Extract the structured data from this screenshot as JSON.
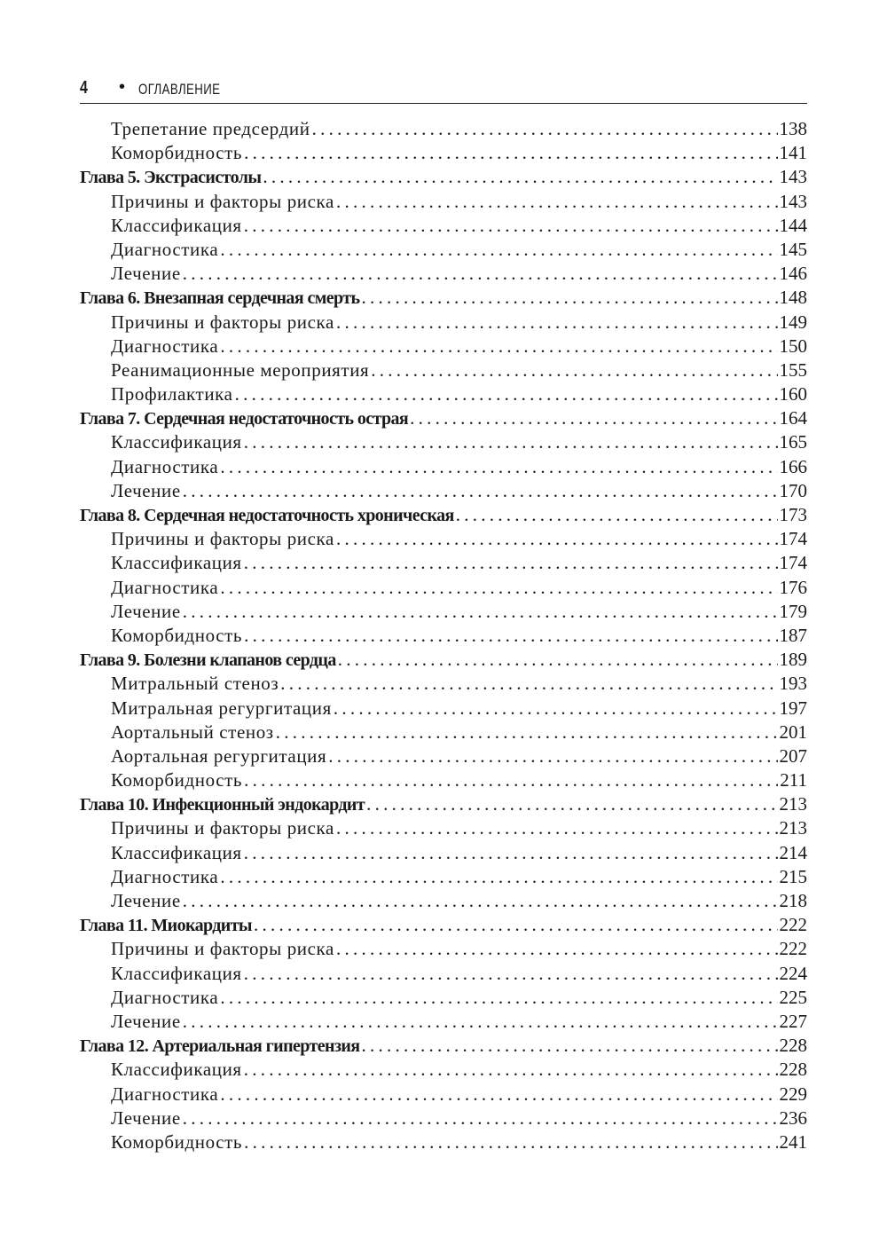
{
  "header": {
    "page_number": "4",
    "bullet": "•",
    "title": "ОГЛАВЛЕНИЕ"
  },
  "entries": [
    {
      "level": "sub",
      "text": "Трепетание предсердий",
      "page": "138"
    },
    {
      "level": "sub",
      "text": "Коморбидность",
      "page": "141"
    },
    {
      "level": "chapter",
      "text": "Глава 5. Экстрасистолы",
      "page": "143"
    },
    {
      "level": "sub",
      "text": "Причины и факторы риска",
      "page": "143"
    },
    {
      "level": "sub",
      "text": "Классификация",
      "page": "144"
    },
    {
      "level": "sub",
      "text": "Диагностика",
      "page": "145"
    },
    {
      "level": "sub",
      "text": "Лечение",
      "page": "146"
    },
    {
      "level": "chapter",
      "text": "Глава 6. Внезапная сердечная смерть",
      "page": "148"
    },
    {
      "level": "sub",
      "text": "Причины и факторы риска",
      "page": "149"
    },
    {
      "level": "sub",
      "text": "Диагностика",
      "page": "150"
    },
    {
      "level": "sub",
      "text": "Реанимационные мероприятия",
      "page": "155"
    },
    {
      "level": "sub",
      "text": "Профилактика",
      "page": "160"
    },
    {
      "level": "chapter",
      "text": "Глава 7. Сердечная недостаточность острая",
      "page": "164"
    },
    {
      "level": "sub",
      "text": "Классификация",
      "page": "165"
    },
    {
      "level": "sub",
      "text": "Диагностика",
      "page": "166"
    },
    {
      "level": "sub",
      "text": "Лечение",
      "page": "170"
    },
    {
      "level": "chapter",
      "text": "Глава 8. Сердечная недостаточность хроническая",
      "page": "173"
    },
    {
      "level": "sub",
      "text": "Причины и факторы риска",
      "page": "174"
    },
    {
      "level": "sub",
      "text": "Классификация",
      "page": "174"
    },
    {
      "level": "sub",
      "text": "Диагностика",
      "page": "176"
    },
    {
      "level": "sub",
      "text": "Лечение",
      "page": "179"
    },
    {
      "level": "sub",
      "text": "Коморбидность",
      "page": "187"
    },
    {
      "level": "chapter",
      "text": "Глава 9. Болезни клапанов сердца",
      "page": "189"
    },
    {
      "level": "sub",
      "text": "Митральный стеноз",
      "page": "193"
    },
    {
      "level": "sub",
      "text": "Митральная регургитация",
      "page": "197"
    },
    {
      "level": "sub",
      "text": "Аортальный стеноз",
      "page": "201"
    },
    {
      "level": "sub",
      "text": "Аортальная регургитация",
      "page": "207"
    },
    {
      "level": "sub",
      "text": "Коморбидность",
      "page": "211"
    },
    {
      "level": "chapter",
      "text": "Глава 10. Инфекционный эндокардит",
      "page": "213"
    },
    {
      "level": "sub",
      "text": "Причины и факторы риска",
      "page": "213"
    },
    {
      "level": "sub",
      "text": "Классификация",
      "page": "214"
    },
    {
      "level": "sub",
      "text": "Диагностика",
      "page": "215"
    },
    {
      "level": "sub",
      "text": "Лечение",
      "page": "218"
    },
    {
      "level": "chapter",
      "text": "Глава 11. Миокардиты",
      "page": "222"
    },
    {
      "level": "sub",
      "text": "Причины и факторы риска",
      "page": "222"
    },
    {
      "level": "sub",
      "text": "Классификация",
      "page": "224"
    },
    {
      "level": "sub",
      "text": "Диагностика",
      "page": "225"
    },
    {
      "level": "sub",
      "text": "Лечение",
      "page": "227"
    },
    {
      "level": "chapter",
      "text": "Глава 12. Артериальная гипертензия",
      "page": "228"
    },
    {
      "level": "sub",
      "text": "Классификация",
      "page": "228"
    },
    {
      "level": "sub",
      "text": "Диагностика",
      "page": "229"
    },
    {
      "level": "sub",
      "text": "Лечение",
      "page": "236"
    },
    {
      "level": "sub",
      "text": "Коморбидность",
      "page": "241"
    }
  ]
}
